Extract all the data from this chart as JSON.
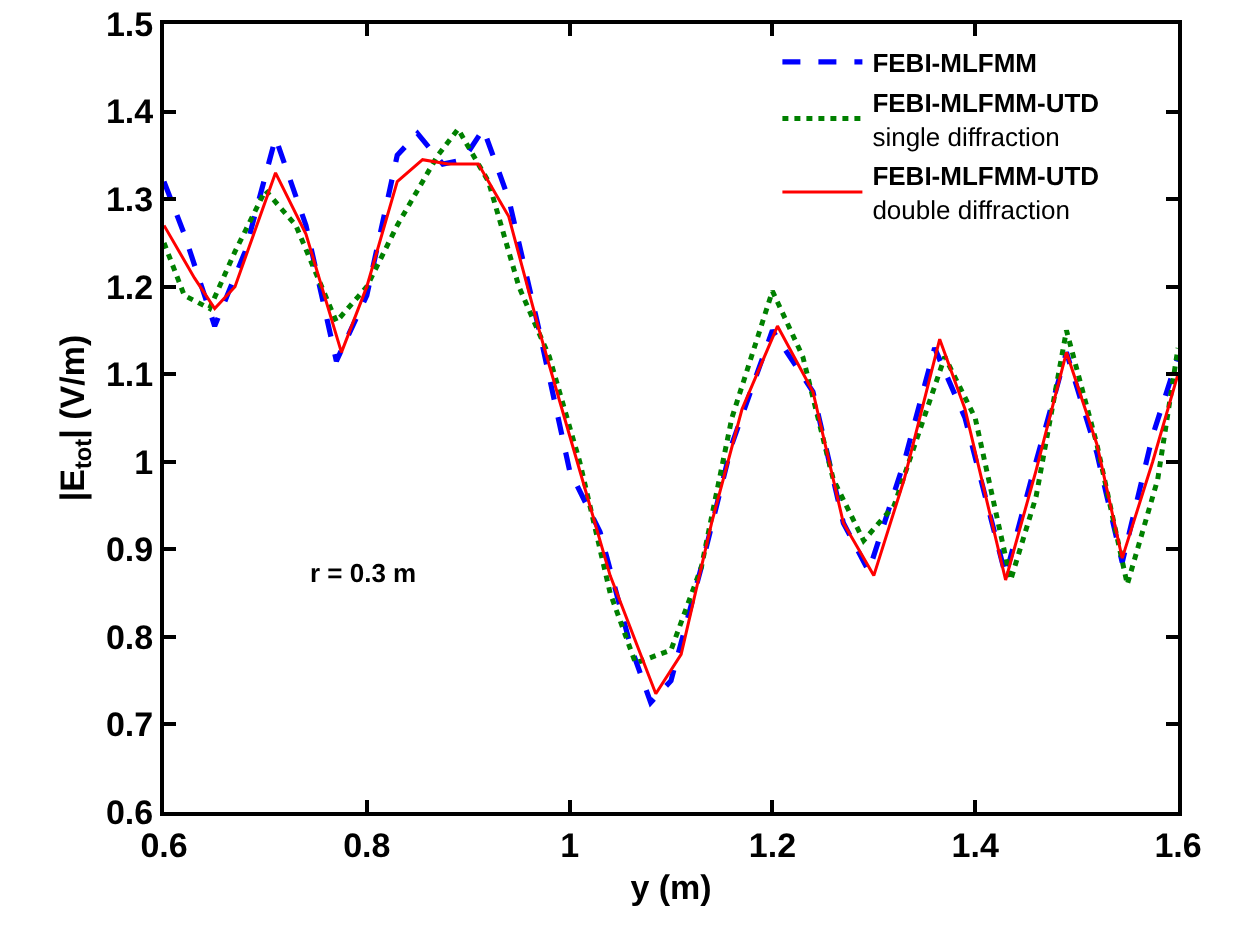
{
  "chart_data": {
    "type": "line",
    "xlabel": "y (m)",
    "ylabel": "|E$_{tot}$| (V/m)",
    "xlim": [
      0.6,
      1.6
    ],
    "xticks": [
      0.6,
      0.8,
      1,
      1.2,
      1.4,
      1.6
    ],
    "ylim": [
      0.6,
      1.5
    ],
    "yticks": [
      0.6,
      0.7,
      0.8,
      0.9,
      1,
      1.1,
      1.2,
      1.3,
      1.4,
      1.5
    ],
    "grid": false,
    "legend": "top right",
    "marker": "none",
    "annotations": [
      "r = 0.3 m"
    ],
    "series": [
      {
        "name": "FEBI-MLFMM",
        "color": "#0000ff",
        "line_style": "dashed",
        "x": [
          0.6,
          0.62,
          0.65,
          0.68,
          0.71,
          0.74,
          0.77,
          0.8,
          0.83,
          0.85,
          0.875,
          0.895,
          0.915,
          0.94,
          0.97,
          1.0,
          1.03,
          1.06,
          1.08,
          1.1,
          1.13,
          1.16,
          1.2,
          1.24,
          1.27,
          1.295,
          1.33,
          1.36,
          1.39,
          1.43,
          1.46,
          1.49,
          1.52,
          1.545,
          1.575,
          1.6
        ],
        "values": [
          1.32,
          1.26,
          1.155,
          1.24,
          1.37,
          1.27,
          1.115,
          1.19,
          1.35,
          1.375,
          1.34,
          1.345,
          1.38,
          1.3,
          1.15,
          0.99,
          0.92,
          0.79,
          0.725,
          0.75,
          0.88,
          1.02,
          1.15,
          1.08,
          0.93,
          0.875,
          1.0,
          1.13,
          1.05,
          0.87,
          1.0,
          1.125,
          1.01,
          0.885,
          1.03,
          1.12
        ]
      },
      {
        "name": "FEBI-MLFMM-UTD\nsingle diffraction",
        "color": "#008000",
        "line_style": "dotted",
        "x": [
          0.6,
          0.62,
          0.645,
          0.67,
          0.7,
          0.73,
          0.77,
          0.8,
          0.83,
          0.87,
          0.89,
          0.92,
          0.95,
          0.98,
          1.01,
          1.04,
          1.065,
          1.1,
          1.13,
          1.16,
          1.2,
          1.23,
          1.26,
          1.29,
          1.32,
          1.37,
          1.4,
          1.435,
          1.46,
          1.49,
          1.52,
          1.55,
          1.58,
          1.6
        ],
        "values": [
          1.25,
          1.19,
          1.175,
          1.24,
          1.31,
          1.27,
          1.16,
          1.2,
          1.27,
          1.35,
          1.38,
          1.32,
          1.2,
          1.12,
          1.0,
          0.85,
          0.77,
          0.785,
          0.88,
          1.05,
          1.195,
          1.12,
          0.98,
          0.91,
          0.95,
          1.12,
          1.05,
          0.865,
          0.96,
          1.15,
          1.02,
          0.86,
          0.98,
          1.13
        ]
      },
      {
        "name": "FEBI-MLFMM-UTD\ndouble diffraction",
        "color": "#ff0000",
        "line_style": "solid",
        "x": [
          0.6,
          0.63,
          0.65,
          0.67,
          0.71,
          0.74,
          0.775,
          0.8,
          0.83,
          0.855,
          0.88,
          0.91,
          0.94,
          0.97,
          1.0,
          1.04,
          1.085,
          1.11,
          1.14,
          1.17,
          1.205,
          1.24,
          1.27,
          1.3,
          1.33,
          1.365,
          1.39,
          1.43,
          1.46,
          1.49,
          1.52,
          1.545,
          1.575,
          1.6
        ],
        "values": [
          1.27,
          1.21,
          1.175,
          1.2,
          1.33,
          1.26,
          1.125,
          1.2,
          1.32,
          1.345,
          1.34,
          1.34,
          1.28,
          1.15,
          1.03,
          0.87,
          0.735,
          0.78,
          0.93,
          1.06,
          1.155,
          1.08,
          0.93,
          0.87,
          0.98,
          1.14,
          1.06,
          0.865,
          0.99,
          1.125,
          1.02,
          0.89,
          1.0,
          1.1
        ]
      }
    ]
  }
}
